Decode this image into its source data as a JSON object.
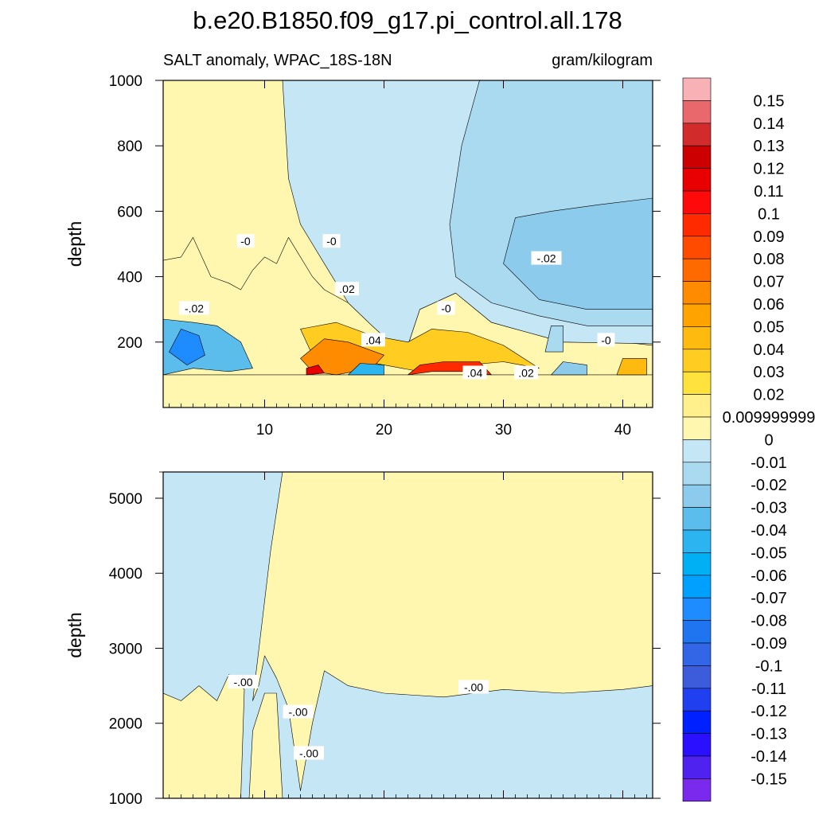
{
  "figure": {
    "title": "b.e20.B1850.f09_g17.pi_control.all.178",
    "subtitle_left": "SALT anomaly, WPAC_18S-18N",
    "subtitle_right": "gram/kilogram"
  },
  "chart_data": [
    {
      "type": "heatmap",
      "panel": "upper",
      "title": "",
      "xlabel": "",
      "ylabel": "depth",
      "xlim": [
        1.5,
        42.5
      ],
      "ylim": [
        1000,
        0
      ],
      "x_ticks": [
        10,
        20,
        30,
        40
      ],
      "x_tick_labels": [
        "10",
        "20",
        "30",
        "40"
      ],
      "y_ticks": [
        200,
        400,
        600,
        800,
        1000
      ],
      "y_tick_labels": [
        "200",
        "400",
        "600",
        "800",
        "1000"
      ],
      "y_reversed": true,
      "grid": false,
      "field": "SALT anomaly",
      "units": "gram/kilogram",
      "regions": [
        {
          "value": 0.005,
          "description": "positive anomaly, west column 1.5-11 below ~450 m",
          "points": [
            [
              1.5,
              1000
            ],
            [
              1.5,
              450
            ],
            [
              3,
              460
            ],
            [
              4,
              520
            ],
            [
              5.5,
              400
            ],
            [
              7,
              380
            ],
            [
              8,
              360
            ],
            [
              9,
              420
            ],
            [
              10,
              460
            ],
            [
              11,
              440
            ],
            [
              12,
              520
            ],
            [
              14,
              400
            ],
            [
              15,
              360
            ],
            [
              17,
              320
            ],
            [
              19,
              250
            ],
            [
              20.5,
              200
            ],
            [
              22,
              190
            ],
            [
              23,
              300
            ],
            [
              26,
              350
            ],
            [
              29,
              260
            ],
            [
              32,
              230
            ],
            [
              35,
              200
            ],
            [
              40,
              200
            ],
            [
              42.5,
              190
            ],
            [
              42.5,
              100
            ],
            [
              1.5,
              100
            ]
          ]
        },
        {
          "value": -0.005,
          "description": "weak negative anomaly",
          "points": [
            [
              11.5,
              1000
            ],
            [
              12,
              700
            ],
            [
              13,
              560
            ],
            [
              15,
              440
            ],
            [
              17,
              320
            ],
            [
              19,
              250
            ],
            [
              20.5,
              200
            ],
            [
              22,
              190
            ],
            [
              23,
              300
            ],
            [
              26,
              350
            ],
            [
              29,
              260
            ],
            [
              32,
              230
            ],
            [
              35,
              200
            ],
            [
              42.5,
              195
            ],
            [
              42.5,
              1000
            ]
          ]
        },
        {
          "value": -0.015,
          "description": "negative anomaly, east subsurface",
          "points": [
            [
              28,
              1000
            ],
            [
              26.5,
              800
            ],
            [
              25.5,
              560
            ],
            [
              26,
              400
            ],
            [
              29,
              320
            ],
            [
              33,
              280
            ],
            [
              37,
              250
            ],
            [
              42.5,
              250
            ],
            [
              42.5,
              1000
            ]
          ]
        },
        {
          "value": -0.025,
          "description": "negative core east",
          "points": [
            [
              31,
              580
            ],
            [
              30,
              440
            ],
            [
              33,
              330
            ],
            [
              37,
              300
            ],
            [
              42.5,
              300
            ],
            [
              42.5,
              640
            ],
            [
              38,
              620
            ],
            [
              34,
              600
            ]
          ]
        },
        {
          "value": 0.035,
          "description": "upper positive core 20-35",
          "points": [
            [
              13,
              240
            ],
            [
              14,
              160
            ],
            [
              17,
              150
            ],
            [
              20,
              130
            ],
            [
              23,
              110
            ],
            [
              27,
              130
            ],
            [
              30,
              140
            ],
            [
              33,
              120
            ],
            [
              30,
              190
            ],
            [
              27,
              230
            ],
            [
              24,
              240
            ],
            [
              22,
              200
            ],
            [
              19,
              220
            ],
            [
              16,
              260
            ]
          ]
        },
        {
          "value": 0.06,
          "description": "surface salinity maxima",
          "points": [
            [
              13,
              150
            ],
            [
              14,
              110
            ],
            [
              16,
              100
            ],
            [
              19,
              120
            ],
            [
              20,
              160
            ],
            [
              17,
              200
            ],
            [
              15,
              210
            ]
          ]
        },
        {
          "value": 0.09,
          "description": "surface high anomaly 22-29",
          "points": [
            [
              22,
              100
            ],
            [
              24,
              110
            ],
            [
              27,
              110
            ],
            [
              29,
              100
            ],
            [
              28,
              140
            ],
            [
              25,
              140
            ],
            [
              23,
              130
            ]
          ]
        },
        {
          "value": 0.11,
          "description": "surface max near 14",
          "points": [
            [
              13.5,
              100
            ],
            [
              15,
              105
            ],
            [
              14.5,
              130
            ],
            [
              13.5,
              120
            ]
          ]
        },
        {
          "value": -0.04,
          "description": "west surface minimum",
          "points": [
            [
              1.5,
              100
            ],
            [
              4,
              120
            ],
            [
              7,
              110
            ],
            [
              9,
              120
            ],
            [
              8,
              200
            ],
            [
              6,
              250
            ],
            [
              4,
              260
            ],
            [
              1.5,
              270
            ]
          ]
        },
        {
          "value": -0.08,
          "description": "west core minimum",
          "points": [
            [
              2,
              170
            ],
            [
              3.5,
              130
            ],
            [
              5,
              160
            ],
            [
              4.5,
              220
            ],
            [
              3,
              240
            ]
          ]
        },
        {
          "value": -0.05,
          "description": "surface minimum near 18-19",
          "points": [
            [
              17,
              100
            ],
            [
              20,
              100
            ],
            [
              20,
              130
            ],
            [
              18,
              135
            ]
          ]
        },
        {
          "value": -0.03,
          "description": "surface minimum near 35",
          "points": [
            [
              34,
              100
            ],
            [
              37,
              100
            ],
            [
              37,
              130
            ],
            [
              35,
              140
            ]
          ]
        },
        {
          "value": 0.04,
          "description": "surface maximum near 41",
          "points": [
            [
              39.5,
              100
            ],
            [
              42,
              100
            ],
            [
              42,
              150
            ],
            [
              40,
              150
            ]
          ]
        },
        {
          "value": -0.02,
          "description": "subsurface minimum near 34",
          "points": [
            [
              33.5,
              170
            ],
            [
              35,
              170
            ],
            [
              35,
              250
            ],
            [
              34,
              250
            ]
          ]
        }
      ],
      "contour_labels": [
        {
          "text": "-.02",
          "x": 4.1,
          "y": 303
        },
        {
          "text": "-0",
          "x": 8.4,
          "y": 508
        },
        {
          "text": "-0",
          "x": 15.6,
          "y": 508
        },
        {
          "text": ".02",
          "x": 16.9,
          "y": 362
        },
        {
          "text": ".04",
          "x": 19.1,
          "y": 206
        },
        {
          "text": "-0",
          "x": 25.2,
          "y": 303
        },
        {
          "text": ".04",
          "x": 27.6,
          "y": 106
        },
        {
          "text": ".02",
          "x": 31.9,
          "y": 106
        },
        {
          "text": "-.02",
          "x": 33.6,
          "y": 456
        },
        {
          "text": "-0",
          "x": 38.6,
          "y": 206
        }
      ]
    },
    {
      "type": "heatmap",
      "panel": "lower",
      "title": "",
      "xlabel": "",
      "ylabel": "depth",
      "xlim": [
        1.5,
        42.5
      ],
      "ylim": [
        5350,
        1000
      ],
      "x_ticks": [
        10,
        20,
        30,
        40
      ],
      "x_tick_labels": [],
      "y_ticks": [
        1000,
        2000,
        3000,
        4000,
        5000
      ],
      "y_tick_labels": [
        "1000",
        "2000",
        "3000",
        "4000",
        "5000"
      ],
      "y_reversed": true,
      "grid": false,
      "field": "SALT anomaly",
      "units": "gram/kilogram",
      "regions": [
        {
          "value": 0.005,
          "description": "positive anomaly, west top 1.5-11 above ~2400 m",
          "points": [
            [
              1.5,
              1000
            ],
            [
              8.3,
              1000
            ],
            [
              9,
              1000
            ],
            [
              11.5,
              1000
            ],
            [
              11.5,
              1000
            ],
            [
              10.5,
              1000
            ]
          ]
        },
        {
          "value": 0.005,
          "description": "positive anomaly deep band",
          "points": [
            [
              11.5,
              5350
            ],
            [
              10.5,
              4300
            ],
            [
              9,
              2300
            ],
            [
              9.5,
              2500
            ],
            [
              10,
              2900
            ],
            [
              11,
              2600
            ],
            [
              12,
              2200
            ],
            [
              13,
              1100
            ],
            [
              14,
              2000
            ],
            [
              15,
              2700
            ],
            [
              17,
              2500
            ],
            [
              20,
              2400
            ],
            [
              25,
              2350
            ],
            [
              30,
              2450
            ],
            [
              35,
              2400
            ],
            [
              40,
              2450
            ],
            [
              42.5,
              2500
            ],
            [
              42.5,
              5350
            ]
          ]
        },
        {
          "value": 0.005,
          "description": "positive anomaly west top",
          "points": [
            [
              1.5,
              1000
            ],
            [
              1.5,
              2400
            ],
            [
              3,
              2300
            ],
            [
              4.5,
              2500
            ],
            [
              6,
              2300
            ],
            [
              7,
              2650
            ],
            [
              8.3,
              2450
            ],
            [
              8,
              1000
            ]
          ]
        },
        {
          "value": 0.005,
          "description": "positive anomaly narrow west",
          "points": [
            [
              8.7,
              1000
            ],
            [
              11.5,
              1000
            ],
            [
              11,
              2400
            ],
            [
              10,
              2400
            ],
            [
              9,
              1900
            ]
          ]
        }
      ],
      "contour_labels": [
        {
          "text": "-.00",
          "x": 8.2,
          "y": 2550
        },
        {
          "text": "-.00",
          "x": 12.8,
          "y": 2150
        },
        {
          "text": "-.00",
          "x": 13.7,
          "y": 1600
        },
        {
          "text": "-.00",
          "x": 27.5,
          "y": 2480
        }
      ]
    }
  ],
  "colorbar": {
    "labels": [
      "0.15",
      "0.14",
      "0.13",
      "0.12",
      "0.11",
      "0.1",
      "0.09",
      "0.08",
      "0.07",
      "0.06",
      "0.05",
      "0.04",
      "0.03",
      "0.02",
      "0.009999999",
      "0",
      "-0.01",
      "-0.02",
      "-0.03",
      "-0.04",
      "-0.05",
      "-0.06",
      "-0.07",
      "-0.08",
      "-0.09",
      "-0.1",
      "-0.11",
      "-0.12",
      "-0.13",
      "-0.14",
      "-0.15"
    ],
    "colors": [
      "#F8B2B5",
      "#E8686B",
      "#D22B2B",
      "#CC0000",
      "#E80000",
      "#FF0A0A",
      "#FF2A00",
      "#FF4B00",
      "#FF6A00",
      "#FF8C00",
      "#FFA300",
      "#FFBA10",
      "#FFCC22",
      "#FFE23C",
      "#FFF08C",
      "#FFF7B0",
      "#C5E6F4",
      "#A9DAEF",
      "#8CCBEB",
      "#5BBDEC",
      "#2CB4F0",
      "#00B0F5",
      "#00A0FF",
      "#1E8CFF",
      "#1F74F0",
      "#3366E6",
      "#3D5CDB",
      "#2040F0",
      "#0020FF",
      "#2A10FF",
      "#4F22F0",
      "#7A2AEC"
    ]
  }
}
